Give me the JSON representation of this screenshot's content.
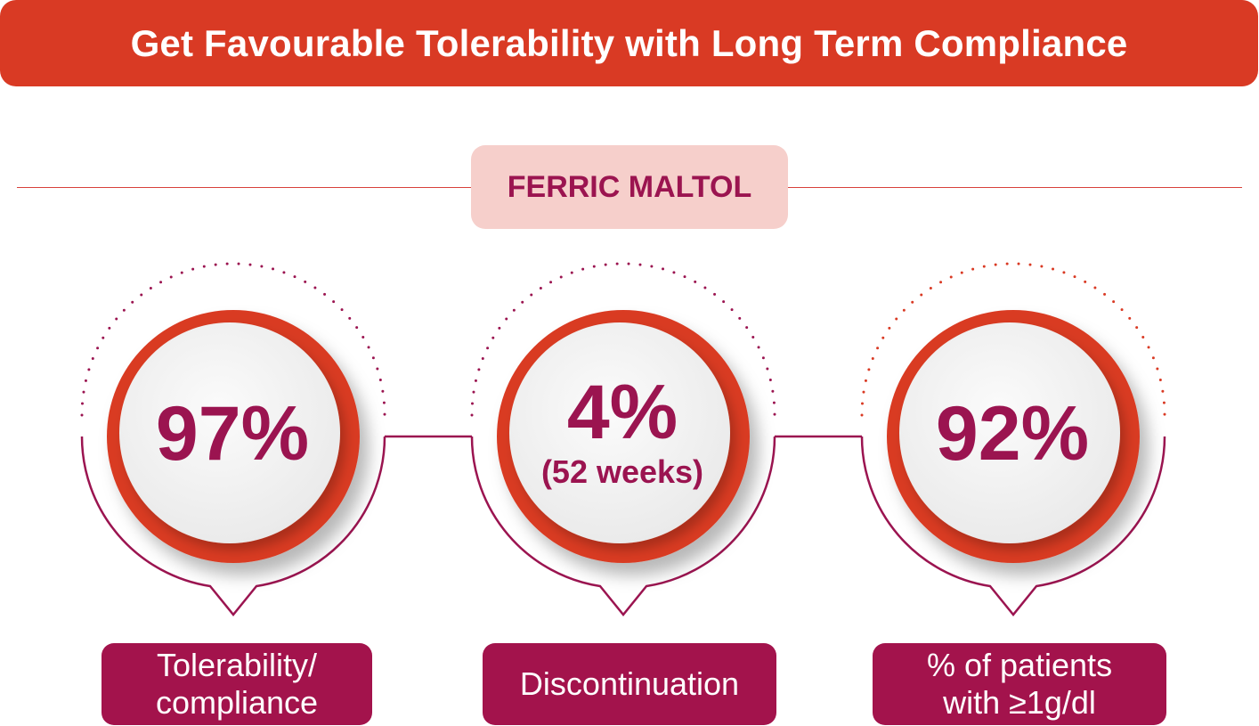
{
  "header": {
    "title": "Get Favourable Tolerability with Long Term Compliance"
  },
  "product": {
    "name": "FERRIC MALTOL"
  },
  "stats": [
    {
      "value": "97%",
      "note": "",
      "label": "Tolerability/\ncompliance"
    },
    {
      "value": "4%",
      "note": "(52 weeks)",
      "label": "Discontinuation"
    },
    {
      "value": "92%",
      "note": "",
      "label": "% of patients\nwith ≥1g/dl"
    }
  ],
  "colors": {
    "banner": "#d93a24",
    "ring": "#d93a24",
    "accent_text": "#9b1450",
    "label_box": "#a3134c",
    "pill": "#f6cfcb"
  }
}
